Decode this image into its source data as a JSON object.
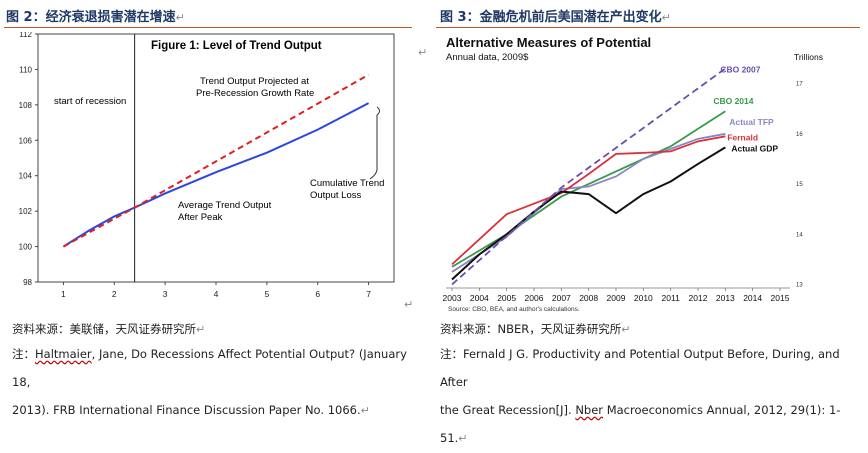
{
  "left": {
    "header": "图 2：经济衰退损害潜在增速",
    "figure_title": "Figure 1:  Level of Trend Output",
    "annotations": {
      "recession": "start of recession",
      "projected_line1": "Trend Output Projected at",
      "projected_line2": "Pre-Recession Growth Rate",
      "average_line1": "Average Trend Output",
      "average_line2": "After Peak",
      "loss_line1": "Cumulative Trend",
      "loss_line2": "Output Loss"
    },
    "source": "资料来源：美联储，天风证券研究所",
    "note_prefix": "注：",
    "note_author": "Haltmaier",
    "note_rest1": ", Jane, Do Recessions Affect Potential Output? (January 18,",
    "note_line2": "2013). FRB International Finance Discussion Paper No. 1066.",
    "chart_data": {
      "type": "line",
      "title": "Figure 1:  Level of Trend Output",
      "x_ticks": [
        "1",
        "2",
        "3",
        "4",
        "5",
        "6",
        "7"
      ],
      "y_ticks": [
        "98",
        "100",
        "102",
        "104",
        "106",
        "108",
        "110",
        "112"
      ],
      "xlim": [
        0.5,
        7.5
      ],
      "ylim": [
        98,
        112
      ],
      "recession_x": 2.4,
      "series": [
        {
          "name": "Trend Output Projected at Pre-Recession Growth Rate",
          "color": "#e02020",
          "dash": true,
          "x": [
            1,
            2.4,
            7
          ],
          "y": [
            100,
            102.2,
            109.7
          ]
        },
        {
          "name": "Average Trend Output After Peak",
          "color": "#2a47e0",
          "dash": false,
          "x": [
            1,
            1.5,
            2,
            2.4,
            3,
            4,
            5,
            6,
            7
          ],
          "y": [
            100,
            100.9,
            101.7,
            102.2,
            103,
            104.2,
            105.3,
            106.6,
            108.1
          ]
        }
      ]
    }
  },
  "right": {
    "header": "图 3：金融危机前后美国潜在产出变化",
    "chart_title": "Alternative Measures of Potential",
    "subtitle": "Annual data, 2009$",
    "units": "Trillions",
    "source_note": "Source: CBO, BEA, and author's calculations.",
    "source": "资料来源：NBER，天风证券研究所",
    "note_line1": "注：Fernald J G. Productivity and Potential Output Before, During, and After",
    "note_line2_a": "the Great Recession[J]. ",
    "note_line2_nber": "Nber",
    "note_line2_b": " Macroeconomics Annual, 2012, 29(1): 1-51.",
    "chart_data": {
      "type": "line",
      "title": "Alternative Measures of Potential",
      "x": [
        2003,
        2004,
        2005,
        2006,
        2007,
        2008,
        2009,
        2010,
        2011,
        2012,
        2013,
        2014,
        2015
      ],
      "x_ticks": [
        "2003",
        "2004",
        "2005",
        "2006",
        "2007",
        "2008",
        "2009",
        "2010",
        "2011",
        "2012",
        "2013",
        "2014",
        "2015"
      ],
      "y_ticks": [
        "13",
        "14",
        "15",
        "16",
        "17"
      ],
      "ylim": [
        12.95,
        17.35
      ],
      "ylabel": "Trillions",
      "series": [
        {
          "name": "CBO 2007",
          "color": "#6a4fa8",
          "dash": true,
          "x": [
            2003,
            2007,
            2013
          ],
          "y": [
            13.0,
            14.93,
            17.3
          ]
        },
        {
          "name": "CBO 2014",
          "color": "#3a9a4a",
          "dash": false,
          "x": [
            2003,
            2005,
            2007,
            2009,
            2011,
            2013
          ],
          "y": [
            13.35,
            14.0,
            14.75,
            15.25,
            15.75,
            16.45
          ]
        },
        {
          "name": "Actual TFP",
          "color": "#8a86c4",
          "dash": false,
          "x": [
            2003,
            2005,
            2007,
            2008,
            2009,
            2010,
            2011,
            2012,
            2013
          ],
          "y": [
            13.25,
            13.95,
            14.9,
            14.95,
            15.15,
            15.5,
            15.7,
            15.9,
            16.0
          ]
        },
        {
          "name": "Fernald",
          "color": "#d8323c",
          "dash": false,
          "x": [
            2003,
            2005,
            2007,
            2008,
            2009,
            2010,
            2011,
            2012,
            2013
          ],
          "y": [
            13.4,
            14.4,
            14.82,
            15.2,
            15.6,
            15.62,
            15.65,
            15.85,
            15.95
          ]
        },
        {
          "name": "Actual GDP",
          "color": "#111111",
          "dash": false,
          "x": [
            2003,
            2004,
            2005,
            2006,
            2007,
            2008,
            2009,
            2010,
            2011,
            2012,
            2013
          ],
          "y": [
            13.1,
            13.6,
            14.0,
            14.45,
            14.85,
            14.8,
            14.42,
            14.8,
            15.05,
            15.4,
            15.73
          ]
        }
      ]
    }
  },
  "return_mark": "↵"
}
